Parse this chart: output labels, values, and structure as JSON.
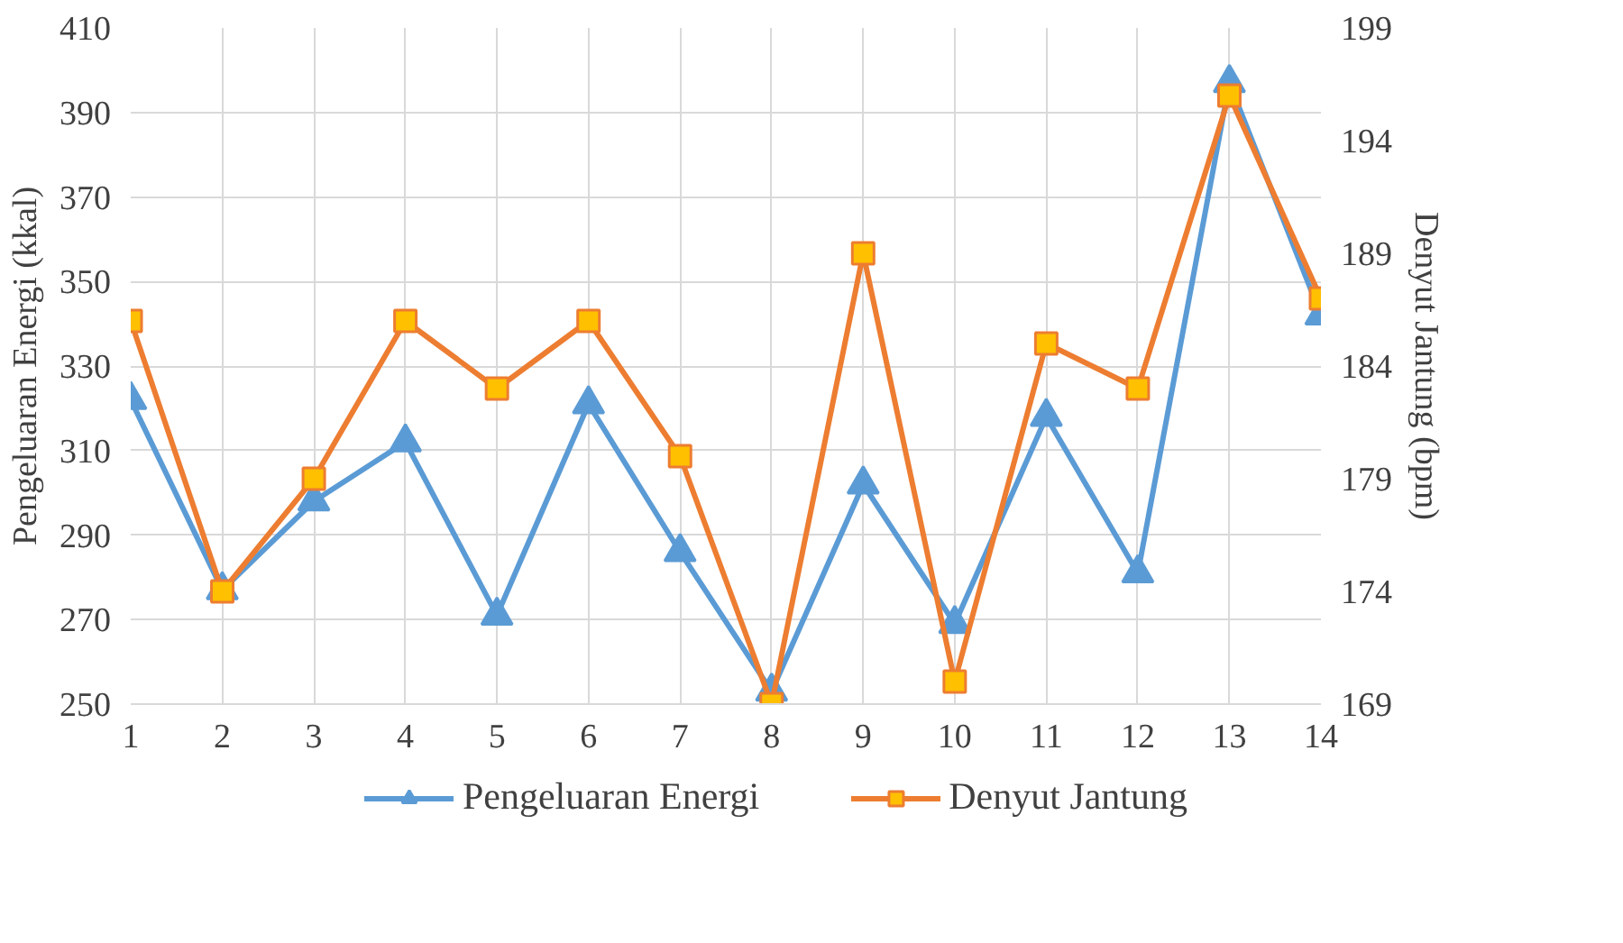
{
  "chart_data": {
    "type": "line",
    "ylabel": "Pengeluaran Energi (kkal)",
    "y2label": "Denyut Jantung (bpm)",
    "x": [
      1,
      2,
      3,
      4,
      5,
      6,
      7,
      8,
      9,
      10,
      11,
      12,
      13,
      14
    ],
    "xlim": [
      1,
      14
    ],
    "xticks": [
      1,
      2,
      3,
      4,
      5,
      6,
      7,
      8,
      9,
      10,
      11,
      12,
      13,
      14
    ],
    "ylim": [
      250,
      410
    ],
    "yticks": [
      250,
      270,
      290,
      310,
      330,
      350,
      370,
      390,
      410
    ],
    "y2lim": [
      169,
      199
    ],
    "y2ticks": [
      169,
      174,
      179,
      184,
      189,
      194,
      199
    ],
    "series": [
      {
        "name": "Pengeluaran Energi",
        "color": "#5b9bd5",
        "marker": "triangle",
        "values": [
          322,
          277,
          298,
          312,
          271,
          321,
          286,
          253,
          302,
          269,
          318,
          281,
          397,
          342
        ]
      },
      {
        "name": "Denyut Jantung",
        "color": "#ed7d31",
        "marker": "square",
        "axis": "y2",
        "values": [
          186,
          174,
          179,
          186,
          183,
          186,
          180,
          169,
          189,
          170,
          185,
          183,
          196,
          187
        ]
      }
    ],
    "grid": true,
    "legend": "bottom",
    "line_style": "solid"
  }
}
